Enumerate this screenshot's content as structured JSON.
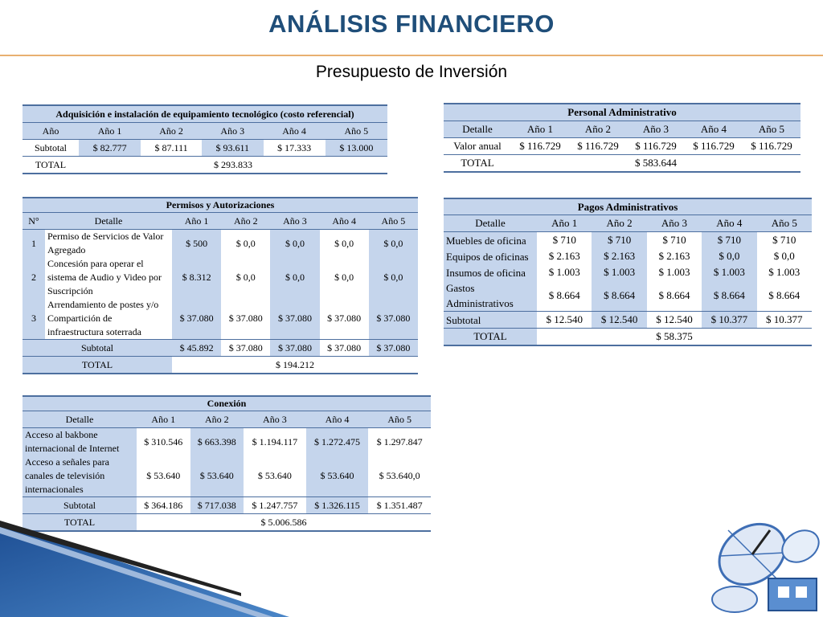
{
  "header": {
    "title": "ANÁLISIS FINANCIERO",
    "subtitle": "Presupuesto de Inversión"
  },
  "colors": {
    "title": "#1f4e79",
    "accent_line": "#e8b070",
    "cell_fill": "#c5d5ec",
    "border": "#4d6f9f"
  },
  "adquisicion": {
    "caption": "Adquisición e instalación de equipamiento tecnológico (costo referencial)",
    "headers": [
      "Año",
      "Año 1",
      "Año 2",
      "Año 3",
      "Año 4",
      "Año 5"
    ],
    "subtotal_label": "Subtotal",
    "subtotal": [
      "$ 82.777",
      "$ 87.111",
      "$ 93.611",
      "$ 17.333",
      "$ 13.000"
    ],
    "total_label": "TOTAL",
    "total": "$ 293.833"
  },
  "personal": {
    "caption": "Personal Administrativo",
    "headers": [
      "Detalle",
      "Año 1",
      "Año 2",
      "Año 3",
      "Año 4",
      "Año 5"
    ],
    "row_label": "Valor anual",
    "values": [
      "$ 116.729",
      "$ 116.729",
      "$ 116.729",
      "$ 116.729",
      "$ 116.729"
    ],
    "total_label": "TOTAL",
    "total": "$ 583.644"
  },
  "permisos": {
    "caption": "Permisos y Autorizaciones",
    "headers": [
      "N°",
      "Detalle",
      "Año 1",
      "Año 2",
      "Año 3",
      "Año 4",
      "Año 5"
    ],
    "rows": [
      {
        "n": "1",
        "detalle": "Permiso de Servicios de Valor Agregado",
        "values": [
          "$ 500",
          "$ 0,0",
          "$ 0,0",
          "$ 0,0",
          "$ 0,0"
        ]
      },
      {
        "n": "2",
        "detalle": "Concesión para operar el sistema de Audio y Video por Suscripción",
        "values": [
          "$ 8.312",
          "$ 0,0",
          "$ 0,0",
          "$ 0,0",
          "$ 0,0"
        ]
      },
      {
        "n": "3",
        "detalle": "Arrendamiento de postes y/o Compartición de infraestructura soterrada",
        "values": [
          "$ 37.080",
          "$ 37.080",
          "$ 37.080",
          "$ 37.080",
          "$ 37.080"
        ]
      }
    ],
    "subtotal_label": "Subtotal",
    "subtotal": [
      "$ 45.892",
      "$ 37.080",
      "$ 37.080",
      "$ 37.080",
      "$ 37.080"
    ],
    "total_label": "TOTAL",
    "total": "$ 194.212"
  },
  "pagos": {
    "caption": "Pagos Administrativos",
    "headers": [
      "Detalle",
      "Año 1",
      "Año 2",
      "Año 3",
      "Año 4",
      "Año 5"
    ],
    "rows": [
      {
        "detalle": "Muebles de oficina",
        "values": [
          "$ 710",
          "$ 710",
          "$ 710",
          "$ 710",
          "$ 710"
        ]
      },
      {
        "detalle": "Equipos de oficinas",
        "values": [
          "$ 2.163",
          "$ 2.163",
          "$ 2.163",
          "$ 0,0",
          "$ 0,0"
        ]
      },
      {
        "detalle": "Insumos de oficina",
        "values": [
          "$ 1.003",
          "$ 1.003",
          "$ 1.003",
          "$ 1.003",
          "$ 1.003"
        ]
      },
      {
        "detalle": "Gastos Administrativos",
        "values": [
          "$ 8.664",
          "$ 8.664",
          "$ 8.664",
          "$ 8.664",
          "$ 8.664"
        ]
      }
    ],
    "subtotal_label": "Subtotal",
    "subtotal": [
      "$ 12.540",
      "$ 12.540",
      "$ 12.540",
      "$ 10.377",
      "$ 10.377"
    ],
    "total_label": "TOTAL",
    "total": "$ 58.375"
  },
  "conexion": {
    "caption": "Conexión",
    "headers": [
      "Detalle",
      "Año 1",
      "Año 2",
      "Año 3",
      "Año 4",
      "Año 5"
    ],
    "rows": [
      {
        "detalle": "Acceso al bakbone internacional de Internet",
        "values": [
          "$ 310.546",
          "$ 663.398",
          "$ 1.194.117",
          "$ 1.272.475",
          "$ 1.297.847"
        ]
      },
      {
        "detalle": "Acceso a señales para canales de televisión internacionales",
        "values": [
          "$ 53.640",
          "$ 53.640",
          "$ 53.640",
          "$ 53.640",
          "$ 53.640,0"
        ]
      }
    ],
    "subtotal_label": "Subtotal",
    "subtotal": [
      "$ 364.186",
      "$ 717.038",
      "$ 1.247.757",
      "$ 1.326.115",
      "$ 1.351.487"
    ],
    "total_label": "TOTAL",
    "total": "$ 5.006.586"
  },
  "decor": {
    "image": "satellite-dish-icon"
  }
}
